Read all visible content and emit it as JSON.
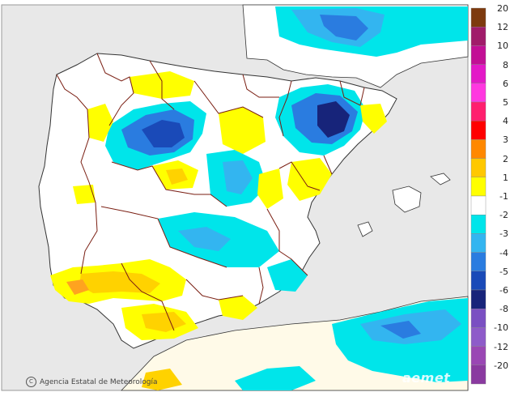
{
  "map": {
    "colors": {
      "sea": "#e8e8e8",
      "land": "#ffffff",
      "border": "#7a1e12",
      "coast": "#333333",
      "neg1": "#00e5ea",
      "neg2": "#33b5f0",
      "neg3": "#2a7ce0",
      "neg4": "#1a4ab8",
      "neg5": "#17247a",
      "pos1": "#ffff00",
      "pos2": "#ffd200",
      "pos3": "#ffa31f",
      "africa": "#fffae8"
    }
  },
  "legend": {
    "entries": [
      {
        "label": "20",
        "color": "#7d3a0e"
      },
      {
        "label": "12",
        "color": "#a01c6a"
      },
      {
        "label": "10",
        "color": "#c20f95"
      },
      {
        "label": "8",
        "color": "#e319c7"
      },
      {
        "label": "6",
        "color": "#ff38e0"
      },
      {
        "label": "5",
        "color": "#ff1f6e"
      },
      {
        "label": "4",
        "color": "#ff0000"
      },
      {
        "label": "3",
        "color": "#ff8800"
      },
      {
        "label": "2",
        "color": "#ffc800"
      },
      {
        "label": "1",
        "color": "#ffff00"
      },
      {
        "label": "-1",
        "color": "#ffffff"
      },
      {
        "label": "-2",
        "color": "#00e5ea"
      },
      {
        "label": "-3",
        "color": "#33b5f0"
      },
      {
        "label": "-4",
        "color": "#2a7ce0"
      },
      {
        "label": "-5",
        "color": "#1a4ab8"
      },
      {
        "label": "-6",
        "color": "#17247a"
      },
      {
        "label": "-8",
        "color": "#7a4fc2"
      },
      {
        "label": "-10",
        "color": "#8e5bc9"
      },
      {
        "label": "-12",
        "color": "#9a47b4"
      },
      {
        "label": "-20",
        "color": "#8a3aa0"
      }
    ]
  },
  "credit": {
    "logo_glyph": "C",
    "text": "Agencia Estatal de Meteorología"
  },
  "brand": "aemet"
}
